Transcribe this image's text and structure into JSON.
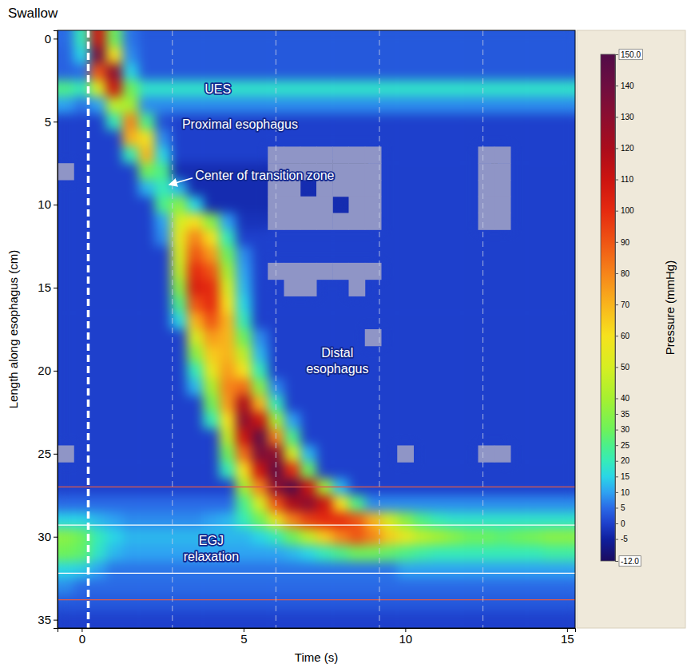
{
  "chart_data": {
    "type": "heatmap",
    "title": "Swallow",
    "x_label": "Time (s)",
    "y_label": "Length along esophagus (cm)",
    "xlim": [
      -0.75,
      15.25
    ],
    "ylim": [
      -0.5,
      35.5
    ],
    "xticks": [
      0,
      5,
      10,
      15
    ],
    "yticks": [
      0,
      5,
      10,
      15,
      20,
      25,
      30,
      35
    ],
    "x": [
      -0.5,
      0,
      0.5,
      1,
      1.5,
      2,
      2.5,
      3,
      3.5,
      4,
      4.5,
      5,
      5.5,
      6,
      6.5,
      7,
      7.5,
      8,
      8.5,
      9,
      9.5,
      10,
      10.5,
      11,
      11.5,
      12,
      12.5,
      13,
      13.5,
      14,
      14.5,
      15
    ],
    "y": [
      0,
      1,
      2,
      3,
      4,
      5,
      6,
      7,
      8,
      9,
      10,
      11,
      12,
      13,
      14,
      15,
      16,
      17,
      18,
      19,
      20,
      21,
      22,
      23,
      24,
      25,
      26,
      27,
      28,
      29,
      30,
      31,
      32,
      33,
      34,
      35
    ],
    "values": [
      [
        5,
        20,
        110,
        30,
        6,
        3,
        3,
        3,
        3,
        3,
        3,
        3,
        3,
        3,
        3,
        3,
        3,
        3,
        3,
        3,
        3,
        3,
        3,
        3,
        3,
        3,
        3,
        3,
        3,
        3,
        3,
        3
      ],
      [
        4,
        15,
        140,
        60,
        8,
        3,
        3,
        3,
        3,
        3,
        3,
        3,
        3,
        3,
        3,
        3,
        3,
        3,
        3,
        3,
        3,
        3,
        3,
        3,
        3,
        3,
        3,
        3,
        3,
        3,
        3,
        3
      ],
      [
        4,
        5,
        90,
        130,
        15,
        3,
        3,
        3,
        3,
        3,
        3,
        3,
        3,
        3,
        3,
        3,
        3,
        3,
        3,
        3,
        3,
        3,
        3,
        3,
        3,
        3,
        3,
        3,
        3,
        3,
        3,
        3
      ],
      [
        25,
        20,
        50,
        110,
        30,
        18,
        18,
        18,
        18,
        18,
        18,
        18,
        18,
        18,
        18,
        18,
        18,
        18,
        18,
        18,
        18,
        18,
        18,
        18,
        18,
        18,
        18,
        18,
        18,
        18,
        18,
        18
      ],
      [
        10,
        6,
        10,
        45,
        40,
        8,
        8,
        8,
        8,
        8,
        8,
        8,
        8,
        8,
        8,
        8,
        8,
        8,
        8,
        8,
        8,
        8,
        8,
        8,
        8,
        8,
        8,
        8,
        8,
        8,
        8,
        8
      ],
      [
        0,
        0,
        0,
        20,
        80,
        25,
        2,
        0,
        0,
        0,
        0,
        0,
        0,
        0,
        0,
        0,
        0,
        0,
        0,
        0,
        0,
        0,
        0,
        0,
        0,
        0,
        0,
        0,
        0,
        0,
        0,
        0
      ],
      [
        0,
        0,
        0,
        0,
        70,
        60,
        8,
        0,
        0,
        0,
        0,
        0,
        0,
        0,
        0,
        0,
        0,
        0,
        0,
        0,
        0,
        0,
        0,
        0,
        0,
        0,
        0,
        0,
        0,
        0,
        0,
        0
      ],
      [
        0,
        0,
        0,
        0,
        20,
        70,
        15,
        0,
        0,
        0,
        0,
        0,
        0,
        null,
        null,
        null,
        null,
        null,
        null,
        null,
        0,
        0,
        0,
        0,
        0,
        0,
        null,
        null,
        0,
        0,
        0,
        0
      ],
      [
        null,
        0,
        0,
        0,
        0,
        30,
        25,
        -3,
        -3,
        -3,
        -3,
        -3,
        -3,
        null,
        null,
        null,
        null,
        null,
        null,
        null,
        0,
        0,
        0,
        0,
        0,
        0,
        null,
        null,
        0,
        0,
        0,
        0
      ],
      [
        0,
        0,
        0,
        0,
        0,
        12,
        20,
        12,
        -3,
        -3,
        -3,
        -3,
        -3,
        null,
        null,
        -3,
        null,
        null,
        null,
        null,
        0,
        0,
        0,
        0,
        0,
        0,
        null,
        null,
        0,
        0,
        0,
        0
      ],
      [
        0,
        0,
        0,
        0,
        0,
        0,
        25,
        35,
        15,
        -3,
        -3,
        -3,
        -3,
        null,
        null,
        null,
        null,
        -3,
        null,
        null,
        0,
        0,
        0,
        0,
        0,
        0,
        null,
        null,
        0,
        0,
        0,
        0
      ],
      [
        0,
        0,
        0,
        0,
        0,
        0,
        10,
        50,
        60,
        35,
        10,
        -2,
        -2,
        null,
        null,
        null,
        null,
        null,
        null,
        null,
        0,
        0,
        0,
        0,
        0,
        0,
        null,
        null,
        0,
        0,
        0,
        0
      ],
      [
        0,
        0,
        0,
        0,
        0,
        0,
        8,
        55,
        80,
        60,
        20,
        0,
        0,
        0,
        0,
        0,
        0,
        0,
        0,
        0,
        0,
        0,
        0,
        0,
        0,
        0,
        0,
        0,
        0,
        0,
        0,
        0
      ],
      [
        0,
        0,
        0,
        0,
        0,
        0,
        0,
        50,
        90,
        75,
        30,
        8,
        0,
        0,
        0,
        0,
        0,
        0,
        0,
        0,
        0,
        0,
        0,
        0,
        0,
        0,
        0,
        0,
        0,
        0,
        0,
        0
      ],
      [
        0,
        0,
        0,
        0,
        0,
        0,
        0,
        45,
        100,
        90,
        40,
        10,
        0,
        null,
        null,
        null,
        null,
        null,
        null,
        null,
        0,
        0,
        0,
        0,
        0,
        0,
        0,
        0,
        0,
        0,
        0,
        0
      ],
      [
        0,
        0,
        0,
        0,
        0,
        0,
        0,
        35,
        105,
        100,
        50,
        12,
        0,
        0,
        null,
        null,
        0,
        0,
        null,
        0,
        0,
        0,
        0,
        0,
        0,
        0,
        0,
        0,
        0,
        0,
        0,
        0
      ],
      [
        0,
        0,
        0,
        0,
        0,
        0,
        0,
        25,
        90,
        100,
        60,
        15,
        0,
        0,
        0,
        0,
        0,
        0,
        0,
        0,
        0,
        0,
        0,
        0,
        0,
        0,
        0,
        0,
        0,
        0,
        0,
        0
      ],
      [
        0,
        0,
        0,
        0,
        0,
        0,
        0,
        15,
        70,
        90,
        70,
        20,
        0,
        0,
        0,
        0,
        0,
        0,
        0,
        0,
        0,
        0,
        0,
        0,
        0,
        0,
        0,
        0,
        0,
        0,
        0,
        0
      ],
      [
        0,
        0,
        0,
        0,
        0,
        0,
        0,
        0,
        50,
        75,
        70,
        30,
        8,
        0,
        0,
        0,
        0,
        0,
        0,
        null,
        0,
        0,
        0,
        0,
        0,
        0,
        0,
        0,
        0,
        0,
        0,
        0
      ],
      [
        0,
        0,
        0,
        0,
        0,
        0,
        0,
        0,
        35,
        65,
        70,
        45,
        12,
        0,
        0,
        0,
        0,
        0,
        0,
        0,
        0,
        0,
        0,
        0,
        0,
        0,
        0,
        0,
        0,
        0,
        0,
        0
      ],
      [
        0,
        0,
        0,
        0,
        0,
        0,
        0,
        0,
        20,
        55,
        75,
        60,
        20,
        0,
        0,
        0,
        0,
        0,
        0,
        0,
        0,
        0,
        0,
        0,
        0,
        0,
        0,
        0,
        0,
        0,
        0,
        0
      ],
      [
        0,
        0,
        0,
        0,
        0,
        0,
        0,
        0,
        12,
        40,
        80,
        85,
        35,
        8,
        0,
        0,
        0,
        0,
        0,
        0,
        0,
        0,
        0,
        0,
        0,
        0,
        0,
        0,
        0,
        0,
        0,
        0
      ],
      [
        0,
        0,
        0,
        0,
        0,
        0,
        0,
        0,
        0,
        30,
        75,
        120,
        70,
        20,
        0,
        0,
        0,
        0,
        0,
        0,
        0,
        0,
        0,
        0,
        0,
        0,
        0,
        0,
        0,
        0,
        0,
        0
      ],
      [
        0,
        0,
        0,
        0,
        0,
        0,
        0,
        0,
        0,
        20,
        60,
        130,
        110,
        40,
        10,
        0,
        0,
        0,
        0,
        0,
        0,
        0,
        0,
        0,
        0,
        0,
        0,
        0,
        0,
        0,
        0,
        0
      ],
      [
        0,
        0,
        0,
        0,
        0,
        0,
        0,
        0,
        0,
        0,
        45,
        110,
        145,
        80,
        25,
        0,
        0,
        0,
        0,
        0,
        0,
        0,
        0,
        0,
        0,
        0,
        0,
        0,
        0,
        0,
        0,
        0
      ],
      [
        null,
        0,
        0,
        0,
        0,
        0,
        0,
        0,
        0,
        0,
        30,
        85,
        135,
        130,
        50,
        12,
        0,
        0,
        0,
        0,
        0,
        null,
        0,
        0,
        0,
        0,
        null,
        null,
        0,
        0,
        0,
        0
      ],
      [
        0,
        0,
        0,
        0,
        0,
        0,
        0,
        0,
        0,
        0,
        20,
        60,
        110,
        145,
        100,
        30,
        0,
        0,
        0,
        0,
        0,
        0,
        0,
        0,
        0,
        0,
        0,
        0,
        0,
        0,
        0,
        0
      ],
      [
        0,
        0,
        0,
        0,
        0,
        0,
        0,
        0,
        0,
        0,
        0,
        40,
        80,
        130,
        150,
        110,
        40,
        12,
        0,
        0,
        0,
        0,
        0,
        0,
        0,
        0,
        0,
        0,
        0,
        0,
        0,
        0
      ],
      [
        5,
        5,
        5,
        5,
        5,
        5,
        5,
        5,
        5,
        5,
        5,
        25,
        50,
        90,
        120,
        130,
        110,
        60,
        25,
        8,
        8,
        8,
        8,
        8,
        8,
        8,
        8,
        8,
        8,
        8,
        8,
        8
      ],
      [
        15,
        15,
        12,
        10,
        8,
        8,
        8,
        8,
        8,
        10,
        12,
        20,
        30,
        55,
        80,
        95,
        100,
        100,
        90,
        70,
        50,
        35,
        25,
        20,
        18,
        18,
        18,
        18,
        18,
        18,
        18,
        18
      ],
      [
        35,
        30,
        20,
        15,
        12,
        12,
        12,
        12,
        12,
        12,
        12,
        12,
        15,
        20,
        30,
        45,
        65,
        80,
        90,
        80,
        65,
        55,
        45,
        40,
        35,
        30,
        30,
        28,
        30,
        32,
        35,
        35
      ],
      [
        30,
        28,
        18,
        12,
        10,
        10,
        10,
        10,
        10,
        10,
        10,
        10,
        10,
        10,
        12,
        15,
        20,
        25,
        30,
        30,
        28,
        25,
        22,
        20,
        20,
        20,
        20,
        20,
        20,
        20,
        22,
        22
      ],
      [
        15,
        14,
        10,
        6,
        6,
        6,
        6,
        6,
        6,
        6,
        6,
        6,
        6,
        6,
        6,
        6,
        6,
        6,
        6,
        6,
        6,
        10,
        10,
        10,
        10,
        10,
        10,
        10,
        10,
        10,
        10,
        10
      ],
      [
        8,
        5,
        5,
        5,
        5,
        5,
        5,
        5,
        5,
        5,
        5,
        5,
        5,
        5,
        5,
        5,
        5,
        5,
        5,
        5,
        5,
        5,
        5,
        5,
        5,
        5,
        5,
        5,
        5,
        5,
        5,
        5
      ],
      [
        3,
        3,
        3,
        3,
        3,
        3,
        3,
        3,
        3,
        3,
        3,
        3,
        3,
        3,
        3,
        3,
        3,
        3,
        3,
        3,
        3,
        3,
        3,
        3,
        3,
        3,
        3,
        3,
        3,
        3,
        3,
        3
      ],
      [
        0,
        0,
        0,
        0,
        0,
        0,
        0,
        0,
        0,
        0,
        0,
        0,
        0,
        0,
        0,
        0,
        0,
        0,
        0,
        0,
        0,
        0,
        0,
        0,
        0,
        0,
        0,
        0,
        0,
        0,
        0,
        0
      ]
    ],
    "colorbar": {
      "label": "Pressure (mmHg)",
      "range": [
        -12,
        150
      ],
      "ticks": [
        {
          "value": 150,
          "label": "150.0"
        },
        140,
        130,
        120,
        110,
        100,
        90,
        80,
        70,
        60,
        50,
        40,
        35,
        30,
        25,
        20,
        15,
        10,
        5,
        0,
        -5,
        {
          "value": -12,
          "label": "-12.0"
        }
      ]
    },
    "annotations": [
      {
        "text": "UES"
      },
      {
        "text": "Proximal esophagus"
      },
      {
        "text": "Center of transition zone"
      },
      {
        "text": "Distal esophagus"
      },
      {
        "text": "EGJ relaxation"
      }
    ],
    "swallow_marker": 0.2,
    "time_markers": [
      2.8,
      6.0,
      9.2,
      12.4
    ],
    "egj_bounds": [
      27,
      33.8
    ],
    "egj_lines": [
      29.3,
      32.2
    ]
  }
}
